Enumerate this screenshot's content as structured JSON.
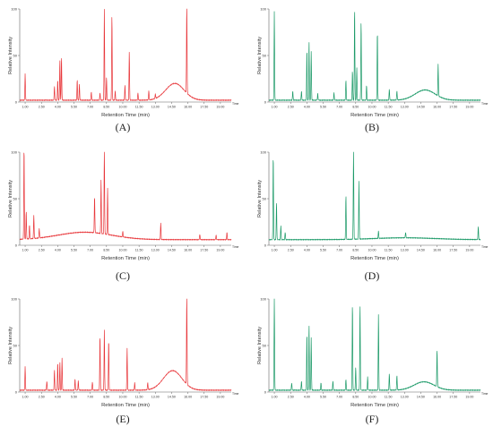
{
  "colors": {
    "red": "#e8373b",
    "green": "#1c9a68",
    "axis": "#666666"
  },
  "common": {
    "ylabel": "Relative Intensity",
    "xlabel": "Retention Time (min)",
    "time_unit": "Time",
    "y_ticks": [
      "0",
      "50",
      "100"
    ],
    "x_ticks": [
      "1.00",
      "2.50",
      "4.00",
      "5.50",
      "7.00",
      "8.50",
      "10.00",
      "11.50",
      "13.00",
      "14.50",
      "16.00",
      "17.50",
      "19.00"
    ]
  },
  "chart_data": [
    {
      "type": "line",
      "caption": "(A)",
      "color": "red",
      "xlabel": "Retention Time (min)",
      "ylabel": "Relative Intensity",
      "xlim": [
        0.5,
        20
      ],
      "ylim": [
        0,
        100
      ],
      "series": [
        {
          "name": "",
          "baseline": 2,
          "hump": {
            "center": 14.8,
            "height": 18,
            "width": 1.2
          },
          "peaks": [
            [
              1.0,
              28
            ],
            [
              3.7,
              15
            ],
            [
              4.0,
              22
            ],
            [
              4.2,
              43
            ],
            [
              4.35,
              47
            ],
            [
              5.8,
              22
            ],
            [
              6.0,
              17
            ],
            [
              7.1,
              9
            ],
            [
              7.9,
              8
            ],
            [
              8.3,
              98
            ],
            [
              8.5,
              25
            ],
            [
              9.0,
              92
            ],
            [
              9.3,
              10
            ],
            [
              10.2,
              16
            ],
            [
              10.6,
              52
            ],
            [
              11.4,
              8
            ],
            [
              12.4,
              10
            ],
            [
              13.0,
              5
            ],
            [
              15.9,
              100
            ]
          ]
        }
      ]
    },
    {
      "type": "line",
      "caption": "(B)",
      "color": "green",
      "xlabel": "Retention Time (min)",
      "ylabel": "Relative Intensity",
      "xlim": [
        0.5,
        20
      ],
      "ylim": [
        0,
        100
      ],
      "series": [
        {
          "name": "",
          "baseline": 2,
          "hump": {
            "center": 14.9,
            "height": 11,
            "width": 1.3
          },
          "peaks": [
            [
              1.0,
              95
            ],
            [
              2.7,
              10
            ],
            [
              3.5,
              10
            ],
            [
              4.0,
              55
            ],
            [
              4.2,
              63
            ],
            [
              4.4,
              52
            ],
            [
              5.0,
              7
            ],
            [
              6.5,
              8
            ],
            [
              7.6,
              22
            ],
            [
              8.2,
              32
            ],
            [
              8.4,
              100
            ],
            [
              8.6,
              35
            ],
            [
              9.0,
              85
            ],
            [
              9.5,
              16
            ],
            [
              10.5,
              75
            ],
            [
              11.6,
              12
            ],
            [
              12.3,
              10
            ],
            [
              16.1,
              34
            ]
          ]
        }
      ]
    },
    {
      "type": "line",
      "caption": "(C)",
      "color": "red",
      "xlabel": "Retention Time (min)",
      "ylabel": "Relative Intensity",
      "xlim": [
        0.5,
        20
      ],
      "ylim": [
        0,
        100
      ],
      "series": [
        {
          "name": "",
          "baseline": 6,
          "hump": {
            "center": 6.5,
            "height": 8,
            "width": 3.5
          },
          "peaks": [
            [
              0.9,
              100
            ],
            [
              1.1,
              30
            ],
            [
              1.4,
              15
            ],
            [
              1.8,
              25
            ],
            [
              2.3,
              10
            ],
            [
              7.4,
              40
            ],
            [
              8.0,
              58
            ],
            [
              8.3,
              97
            ],
            [
              8.6,
              50
            ],
            [
              10.0,
              6
            ],
            [
              13.5,
              18
            ],
            [
              17.1,
              6
            ],
            [
              18.6,
              5
            ],
            [
              19.6,
              8
            ]
          ]
        }
      ]
    },
    {
      "type": "line",
      "caption": "(D)",
      "color": "green",
      "xlabel": "Retention Time (min)",
      "ylabel": "Relative Intensity",
      "xlim": [
        0.5,
        20
      ],
      "ylim": [
        0,
        100
      ],
      "series": [
        {
          "name": "",
          "baseline": 6,
          "hump": {
            "center": 13.0,
            "height": 2,
            "width": 4.0
          },
          "peaks": [
            [
              0.9,
              92
            ],
            [
              1.2,
              40
            ],
            [
              1.6,
              15
            ],
            [
              2.0,
              8
            ],
            [
              7.6,
              48
            ],
            [
              8.3,
              100
            ],
            [
              8.8,
              62
            ],
            [
              10.6,
              8
            ],
            [
              13.1,
              6
            ],
            [
              19.8,
              14
            ]
          ]
        }
      ]
    },
    {
      "type": "line",
      "caption": "(E)",
      "color": "red",
      "xlabel": "Retention Time (min)",
      "ylabel": "Relative Intensity",
      "xlim": [
        0.5,
        20
      ],
      "ylim": [
        0,
        100
      ],
      "series": [
        {
          "name": "",
          "baseline": 2,
          "hump": {
            "center": 14.6,
            "height": 21,
            "width": 1.2
          },
          "peaks": [
            [
              1.0,
              25
            ],
            [
              3.0,
              10
            ],
            [
              3.7,
              22
            ],
            [
              4.0,
              30
            ],
            [
              4.2,
              30
            ],
            [
              4.4,
              34
            ],
            [
              5.6,
              12
            ],
            [
              5.9,
              10
            ],
            [
              7.2,
              9
            ],
            [
              7.9,
              60
            ],
            [
              8.3,
              65
            ],
            [
              8.7,
              55
            ],
            [
              10.4,
              45
            ],
            [
              11.1,
              8
            ],
            [
              12.3,
              8
            ],
            [
              15.9,
              100
            ]
          ]
        }
      ]
    },
    {
      "type": "line",
      "caption": "(F)",
      "color": "green",
      "xlabel": "Retention Time (min)",
      "ylabel": "Relative Intensity",
      "xlim": [
        0.5,
        20
      ],
      "ylim": [
        0,
        100
      ],
      "series": [
        {
          "name": "",
          "baseline": 2,
          "hump": {
            "center": 14.8,
            "height": 9,
            "width": 1.3
          },
          "peaks": [
            [
              1.0,
              100
            ],
            [
              2.6,
              8
            ],
            [
              3.5,
              10
            ],
            [
              4.0,
              62
            ],
            [
              4.2,
              70
            ],
            [
              4.4,
              56
            ],
            [
              5.3,
              8
            ],
            [
              6.4,
              10
            ],
            [
              7.6,
              12
            ],
            [
              8.2,
              94
            ],
            [
              8.5,
              25
            ],
            [
              8.9,
              93
            ],
            [
              9.6,
              14
            ],
            [
              10.6,
              82
            ],
            [
              11.6,
              18
            ],
            [
              12.3,
              16
            ],
            [
              16.0,
              40
            ]
          ]
        }
      ]
    }
  ]
}
